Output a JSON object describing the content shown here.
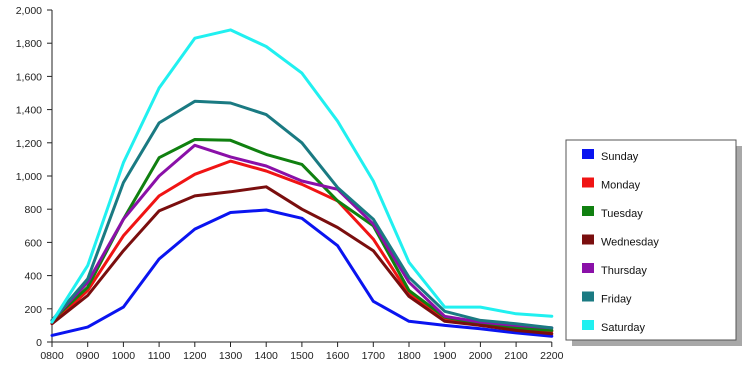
{
  "chart_data": {
    "type": "line",
    "title": "",
    "xlabel": "",
    "ylabel": "",
    "categories": [
      "0800",
      "0900",
      "1000",
      "1100",
      "1200",
      "1300",
      "1400",
      "1500",
      "1600",
      "1700",
      "1800",
      "1900",
      "2000",
      "2100",
      "2200"
    ],
    "ylim": [
      0,
      2000
    ],
    "yticks": [
      0,
      200,
      400,
      600,
      800,
      1000,
      1200,
      1400,
      1600,
      1800,
      2000
    ],
    "ytick_labels": [
      "0",
      "200",
      "400",
      "600",
      "800",
      "1,000",
      "1,200",
      "1,400",
      "1,600",
      "1,800",
      "2,000"
    ],
    "grid": false,
    "legend_position": "right",
    "series": [
      {
        "name": "Sunday",
        "color": "#0a14f0",
        "values": [
          40,
          90,
          210,
          500,
          680,
          780,
          795,
          745,
          580,
          245,
          125,
          100,
          80,
          55,
          35
        ]
      },
      {
        "name": "Monday",
        "color": "#f01414",
        "values": [
          110,
          310,
          640,
          880,
          1010,
          1090,
          1030,
          950,
          850,
          620,
          290,
          140,
          100,
          80,
          65
        ]
      },
      {
        "name": "Tuesday",
        "color": "#108010",
        "values": [
          130,
          330,
          740,
          1110,
          1220,
          1215,
          1130,
          1070,
          850,
          700,
          310,
          150,
          110,
          85,
          70
        ]
      },
      {
        "name": "Wednesday",
        "color": "#7a0e0e",
        "values": [
          110,
          280,
          550,
          790,
          880,
          905,
          935,
          800,
          690,
          550,
          275,
          125,
          100,
          70,
          50
        ]
      },
      {
        "name": "Thursday",
        "color": "#8a10a8",
        "values": [
          130,
          360,
          740,
          1000,
          1185,
          1115,
          1060,
          970,
          920,
          710,
          360,
          155,
          120,
          100,
          85
        ]
      },
      {
        "name": "Friday",
        "color": "#1a7a82",
        "values": [
          130,
          380,
          960,
          1320,
          1450,
          1440,
          1370,
          1200,
          930,
          740,
          390,
          185,
          130,
          110,
          85
        ]
      },
      {
        "name": "Saturday",
        "color": "#20f0f0",
        "values": [
          120,
          460,
          1080,
          1530,
          1830,
          1880,
          1780,
          1620,
          1330,
          970,
          480,
          210,
          210,
          170,
          155
        ]
      }
    ]
  }
}
